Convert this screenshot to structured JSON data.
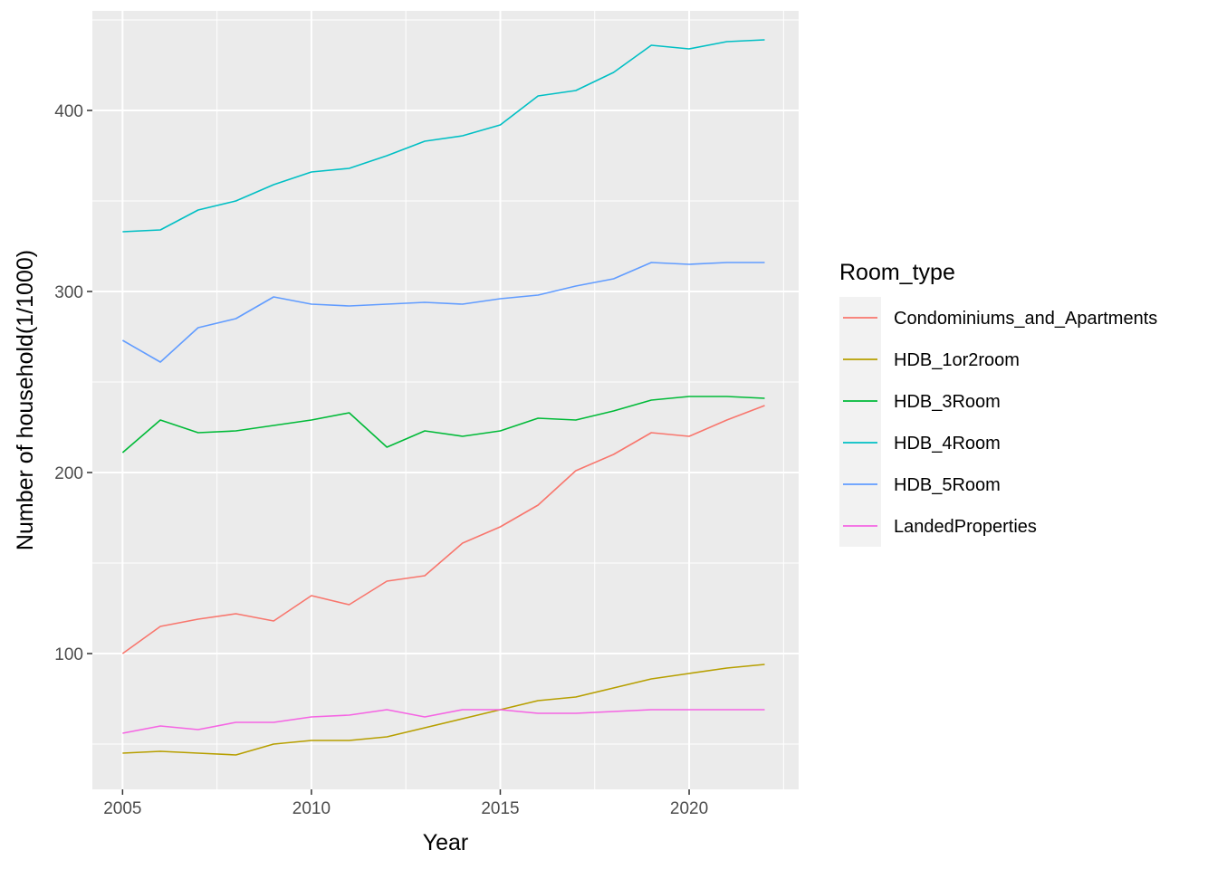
{
  "chart_data": {
    "type": "line",
    "xlabel": "Year",
    "ylabel": "Number of household(1/1000)",
    "xlim": [
      2004.2,
      2022.9
    ],
    "ylim": [
      25,
      455
    ],
    "x_ticks": [
      2005,
      2010,
      2015,
      2020
    ],
    "y_ticks": [
      100,
      200,
      300,
      400
    ],
    "grid": true,
    "legend": {
      "title": "Room_type",
      "position": "right"
    },
    "x": [
      2005,
      2006,
      2007,
      2008,
      2009,
      2010,
      2011,
      2012,
      2013,
      2014,
      2015,
      2016,
      2017,
      2018,
      2019,
      2020,
      2021,
      2022
    ],
    "series": [
      {
        "name": "Condominiums_and_Apartments",
        "color": "#F8766D",
        "values": [
          100,
          115,
          119,
          122,
          118,
          132,
          127,
          140,
          143,
          161,
          170,
          182,
          201,
          210,
          222,
          220,
          229,
          237
        ]
      },
      {
        "name": "HDB_1or2room",
        "color": "#B79F00",
        "values": [
          45,
          46,
          45,
          44,
          50,
          52,
          52,
          54,
          59,
          64,
          69,
          74,
          76,
          81,
          86,
          89,
          92,
          94
        ]
      },
      {
        "name": "HDB_3Room",
        "color": "#00BA38",
        "values": [
          211,
          229,
          222,
          223,
          226,
          229,
          233,
          214,
          223,
          220,
          223,
          230,
          229,
          234,
          240,
          242,
          242,
          241
        ]
      },
      {
        "name": "HDB_4Room",
        "color": "#00BFC4",
        "values": [
          333,
          334,
          345,
          350,
          359,
          366,
          368,
          375,
          383,
          386,
          392,
          408,
          411,
          421,
          436,
          434,
          438,
          439
        ]
      },
      {
        "name": "HDB_5Room",
        "color": "#619CFF",
        "values": [
          273,
          261,
          280,
          285,
          297,
          293,
          292,
          293,
          294,
          293,
          296,
          298,
          303,
          307,
          316,
          315,
          316,
          316
        ]
      },
      {
        "name": "LandedProperties",
        "color": "#F564E3",
        "values": [
          56,
          60,
          58,
          62,
          62,
          65,
          66,
          69,
          65,
          69,
          69,
          67,
          67,
          68,
          69,
          69,
          69,
          69
        ]
      }
    ]
  }
}
